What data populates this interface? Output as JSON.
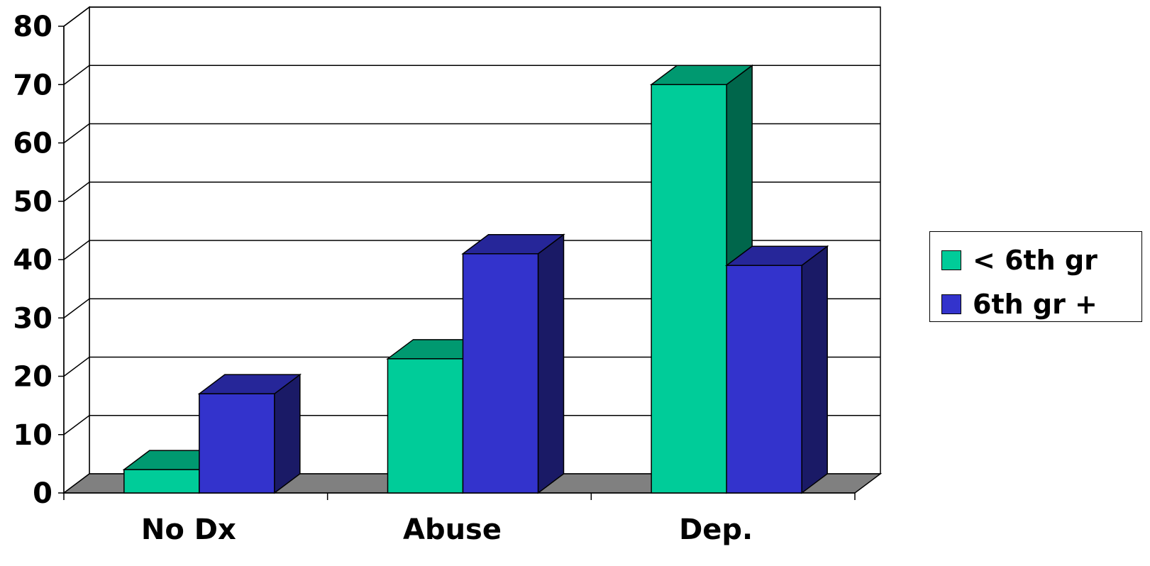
{
  "chart_data": {
    "type": "bar",
    "style": "3d-clustered",
    "categories": [
      "No Dx",
      "Abuse",
      "Dep."
    ],
    "series": [
      {
        "name": "< 6th gr",
        "values": [
          4,
          23,
          70
        ],
        "color": "#00cc99",
        "top_color": "#009970",
        "side_color": "#00664b"
      },
      {
        "name": "6th gr +",
        "values": [
          17,
          41,
          39
        ],
        "color": "#3333cc",
        "top_color": "#262699",
        "side_color": "#1a1a66"
      }
    ],
    "yticks": [
      "0",
      "10",
      "20",
      "30",
      "40",
      "50",
      "60",
      "70",
      "80"
    ],
    "ylim": [
      0,
      80
    ],
    "grid": true,
    "floor_color": "#808080",
    "legend_position": "right"
  }
}
